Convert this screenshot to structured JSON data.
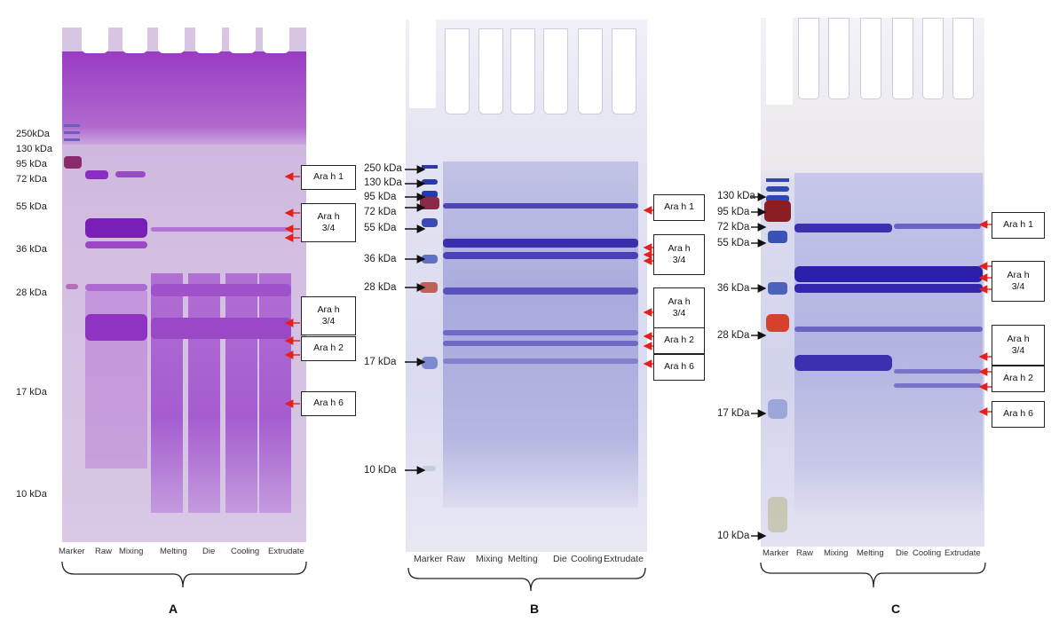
{
  "panels": [
    {
      "letter": "A",
      "markers": [
        "250kDa",
        "130 kDa",
        "95 kDa",
        "72 kDa",
        "55 kDa",
        "36 kDa",
        "28 kDa",
        "17 kDa",
        "10 kDa"
      ],
      "lanes": [
        "Marker",
        "Raw",
        "Mixing",
        "Melting",
        "Die",
        "Cooling",
        "Extrudate"
      ],
      "bands": [
        {
          "line1": "Ara h 1",
          "line2": ""
        },
        {
          "line1": "Ara h",
          "line2": "3/4"
        },
        {
          "line1": "Ara h",
          "line2": "3/4"
        },
        {
          "line1": "Ara h 2",
          "line2": ""
        },
        {
          "line1": "Ara h 6",
          "line2": ""
        }
      ]
    },
    {
      "letter": "B",
      "markers": [
        "250 kDa",
        "130 kDa",
        "95 kDa",
        "72 kDa",
        "55 kDa",
        "36 kDa",
        "28 kDa",
        "17 kDa",
        "10 kDa"
      ],
      "lanes": [
        "Marker",
        "Raw",
        "Mixing",
        "Melting",
        "Die",
        "Cooling",
        "Extrudate"
      ],
      "bands": [
        {
          "line1": "Ara h 1",
          "line2": ""
        },
        {
          "line1": "Ara h",
          "line2": "3/4"
        },
        {
          "line1": "Ara h",
          "line2": "3/4"
        },
        {
          "line1": "Ara h 2",
          "line2": ""
        },
        {
          "line1": "Ara h 6",
          "line2": ""
        }
      ]
    },
    {
      "letter": "C",
      "markers": [
        "130 kDa",
        "95 kDa",
        "72 kDa",
        "55 kDa",
        "36 kDa",
        "28 kDa",
        "17 kDa",
        "10 kDa"
      ],
      "lanes": [
        "Marker",
        "Raw",
        "Mixing",
        "Melting",
        "Die",
        "Cooling",
        "Extrudate"
      ],
      "bands": [
        {
          "line1": "Ara h 1",
          "line2": ""
        },
        {
          "line1": "Ara h",
          "line2": "3/4"
        },
        {
          "line1": "Ara h",
          "line2": "3/4"
        },
        {
          "line1": "Ara h 2",
          "line2": ""
        },
        {
          "line1": "Ara h 6",
          "line2": ""
        }
      ]
    }
  ],
  "colors": {
    "gel_a": "#c49ad6",
    "gel_a_top": "#a44ac6",
    "gel_b": "#d2d3ec",
    "gel_c": "#d6d7ef",
    "band_dark": "#3a2aa8",
    "arrow_red": "#e3201b"
  }
}
